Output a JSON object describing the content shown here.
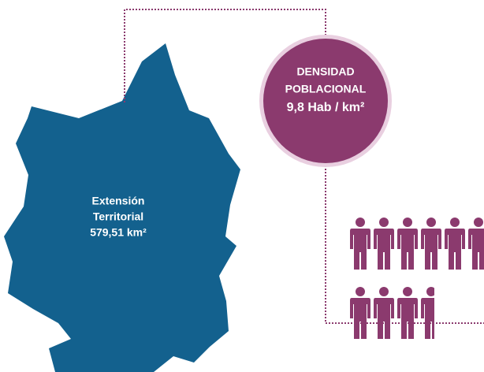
{
  "map_label": {
    "lines": [
      "Extensión",
      "Territorial",
      "579,51 km²"
    ]
  },
  "density": {
    "lines": [
      "DENSIDAD",
      "POBLACIONAL",
      "9,8 Hab / km²"
    ]
  }
}
